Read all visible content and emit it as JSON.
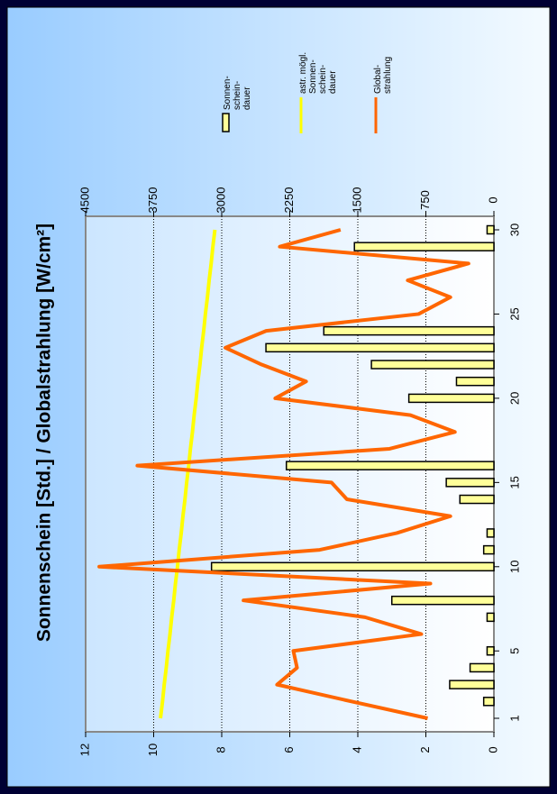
{
  "chart_data": {
    "type": "bar_line",
    "title": "Sonnenschein [Std.] / Globalstrahlung [W/cm²]",
    "categories": [
      1,
      2,
      3,
      4,
      5,
      6,
      7,
      8,
      9,
      10,
      11,
      12,
      13,
      14,
      15,
      16,
      17,
      18,
      19,
      20,
      21,
      22,
      23,
      24,
      25,
      26,
      27,
      28,
      29,
      30
    ],
    "xticks": [
      1,
      5,
      10,
      15,
      20,
      25,
      30
    ],
    "series": [
      {
        "name": "Sonnen-\nschein-\ndauer",
        "kind": "bar",
        "color": "#ffff99",
        "values": [
          0,
          0.3,
          1.3,
          0.7,
          0.2,
          0,
          0.2,
          3.0,
          0,
          8.3,
          0.3,
          0.2,
          0,
          1.0,
          1.4,
          6.1,
          0,
          0,
          0,
          2.5,
          1.1,
          3.6,
          6.7,
          5.0,
          0,
          0,
          0,
          0,
          4.1,
          0.2
        ]
      },
      {
        "name": "astr. mögl.\nSonnen-\nschein-\ndauer",
        "kind": "line",
        "color": "#ffff00",
        "values": [
          9.8,
          9.74,
          9.69,
          9.63,
          9.58,
          9.52,
          9.47,
          9.41,
          9.36,
          9.3,
          9.25,
          9.19,
          9.14,
          9.08,
          9.03,
          8.97,
          8.92,
          8.86,
          8.81,
          8.75,
          8.7,
          8.64,
          8.59,
          8.53,
          8.48,
          8.42,
          8.37,
          8.31,
          8.26,
          8.2
        ]
      },
      {
        "name": "Global-\nstrahlung",
        "kind": "line",
        "color": "#ff6600",
        "axis": "y2",
        "values": [
          730,
          1570,
          2390,
          2170,
          2210,
          800,
          1420,
          2760,
          700,
          4350,
          1920,
          1070,
          480,
          1620,
          1790,
          3930,
          1150,
          430,
          920,
          2410,
          2070,
          2560,
          2960,
          2510,
          830,
          480,
          950,
          280,
          2360,
          1690
        ]
      }
    ],
    "ylim": [
      0,
      12
    ],
    "yticks": [
      0,
      2,
      4,
      6,
      8,
      10,
      12
    ],
    "y2lim": [
      0,
      4500
    ],
    "y2ticks": [
      0,
      750,
      1500,
      2250,
      3000,
      3750,
      4500
    ],
    "grid": true
  }
}
